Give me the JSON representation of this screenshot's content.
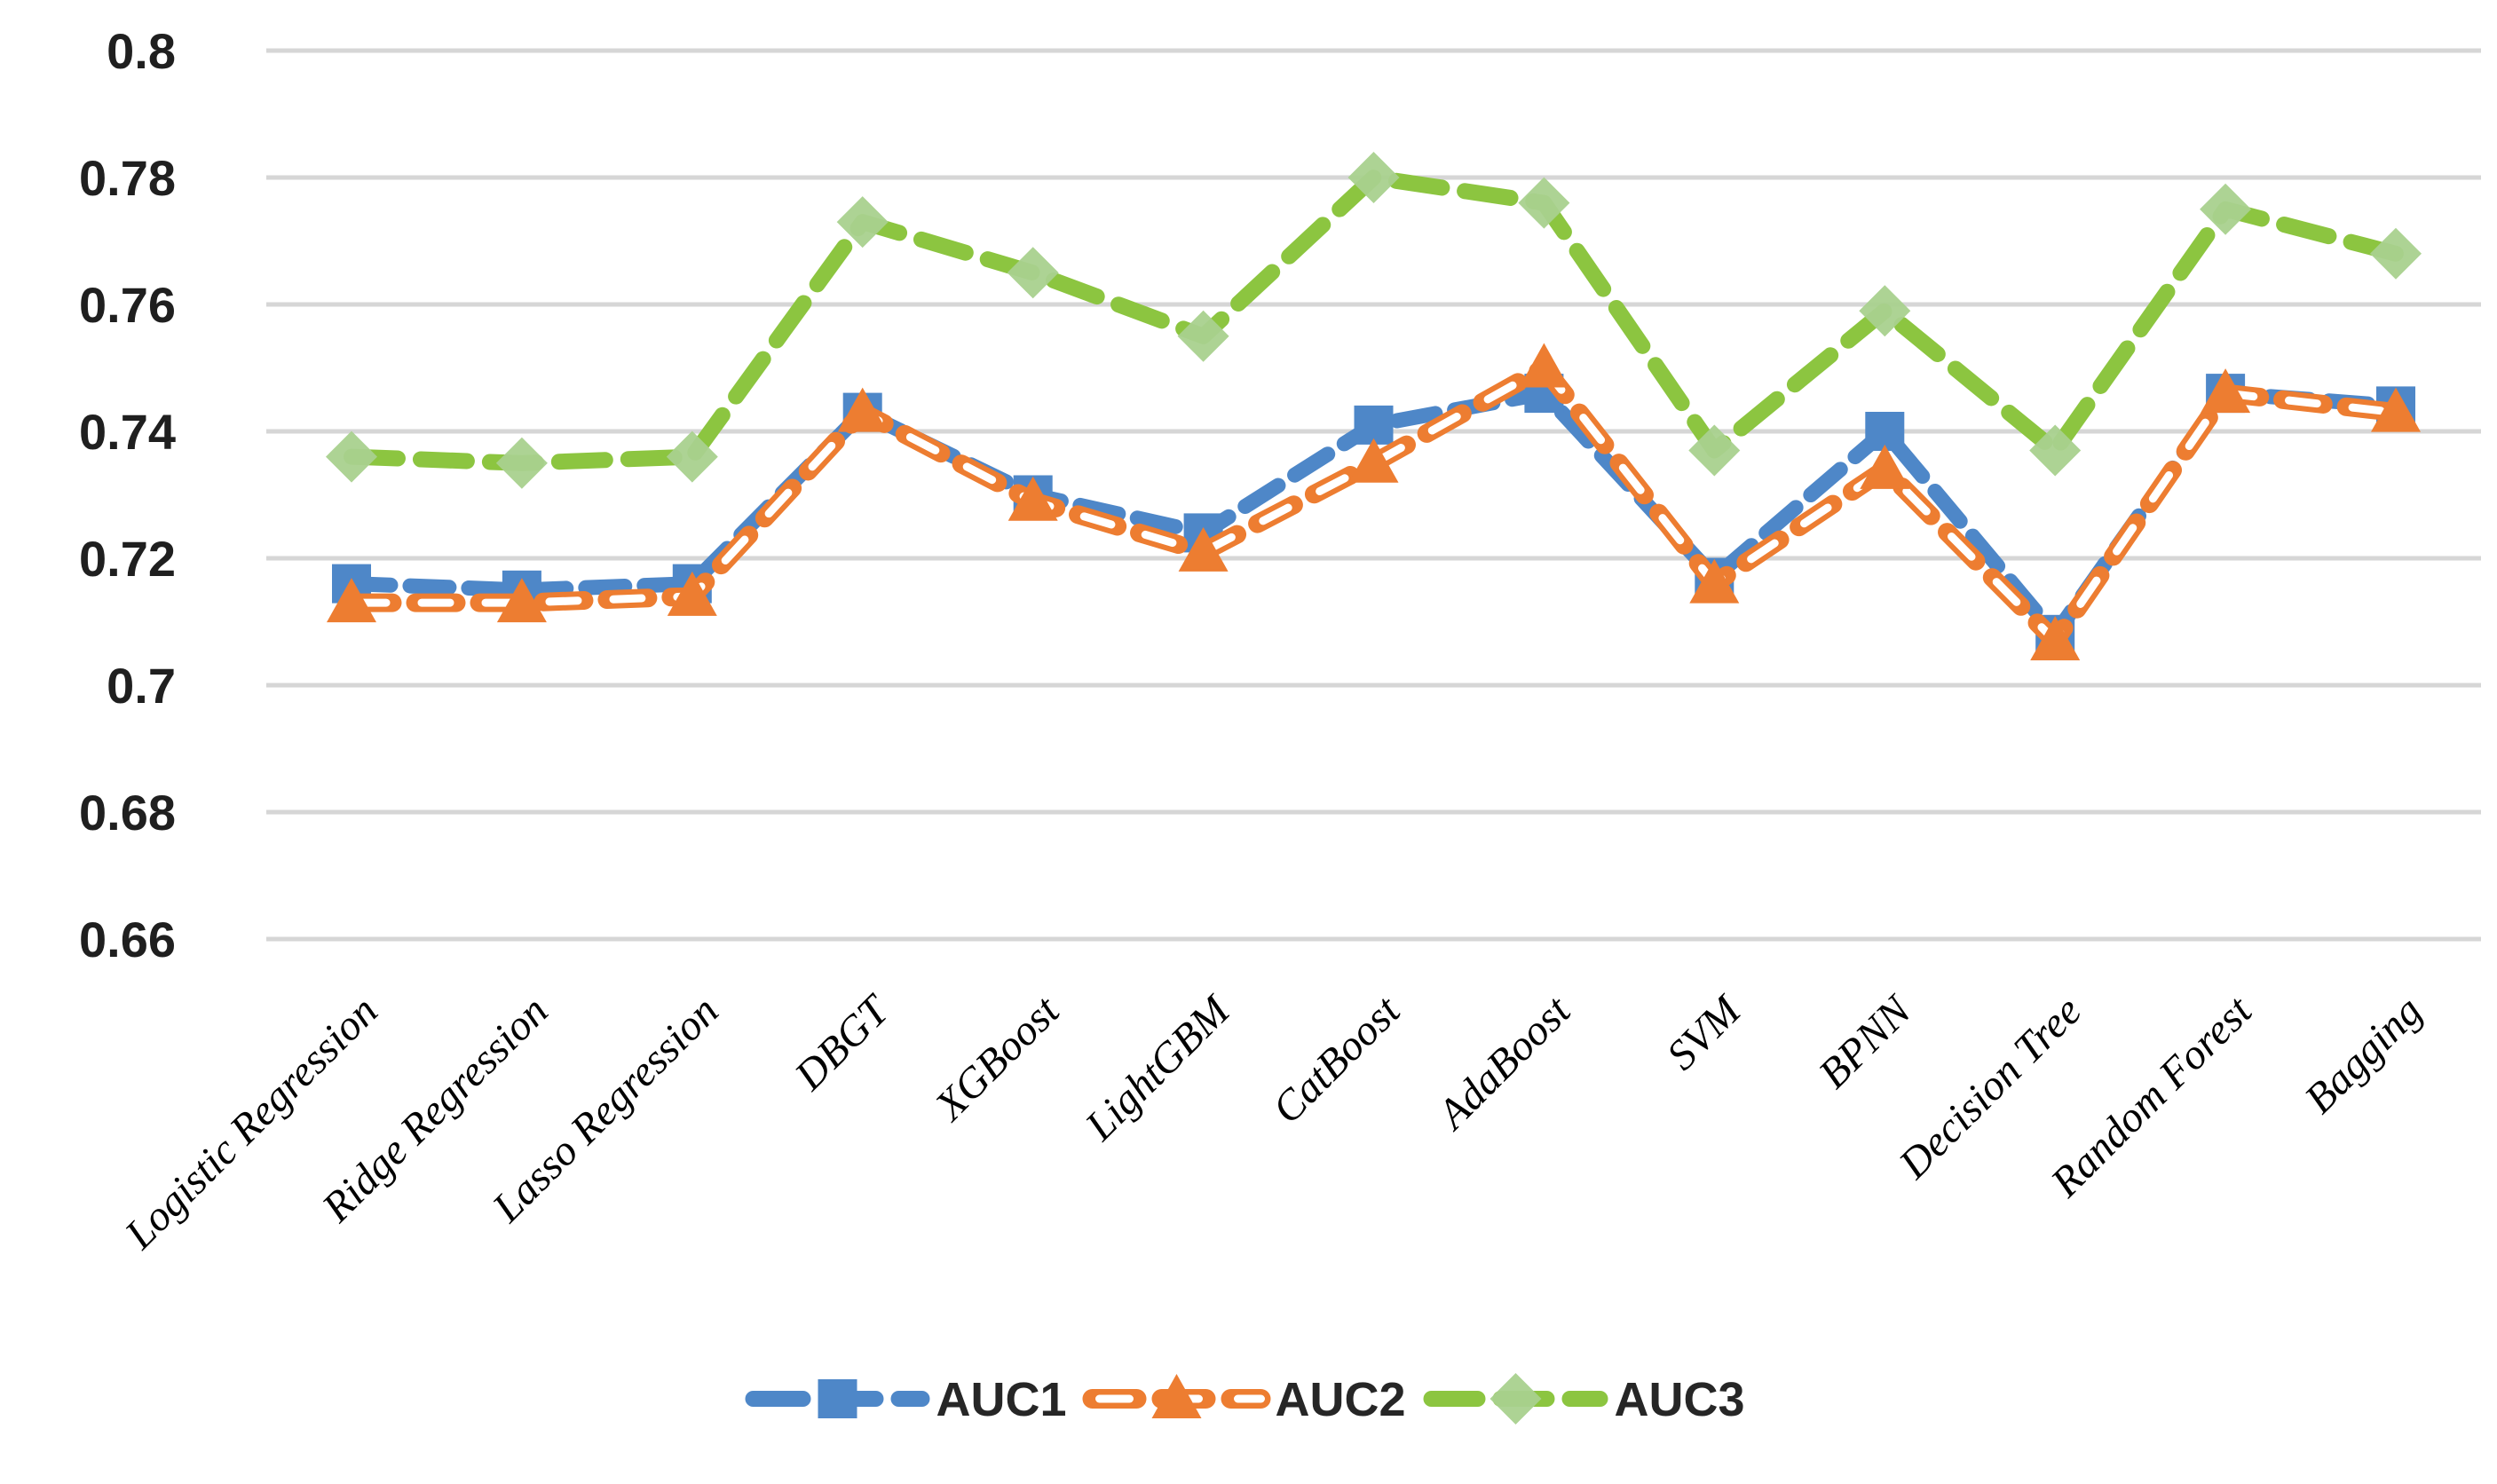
{
  "page": {
    "background": "#FFFFFF"
  },
  "chart_data": {
    "type": "line",
    "title": "",
    "xlabel": "",
    "ylabel": "",
    "categories": [
      "Logistic Regression",
      "Ridge Regression",
      "Lasso Regression",
      "DBGT",
      "XGBoost",
      "LightGBM",
      "CatBoost",
      "AdaBoost",
      "SVM",
      "BPNN",
      "Decision Tree",
      "Random Forest",
      "Bagging"
    ],
    "series": [
      {
        "name": "AUC1",
        "marker": "square",
        "line_style": "dash",
        "color": "#4E87C8",
        "marker_color": "#4E87C8",
        "values": [
          0.716,
          0.715,
          0.716,
          0.743,
          0.73,
          0.724,
          0.741,
          0.746,
          0.717,
          0.74,
          0.708,
          0.746,
          0.744
        ]
      },
      {
        "name": "AUC2",
        "marker": "triangle",
        "line_style": "hollow-dash",
        "color": "#ED7D31",
        "marker_color": "#ED7D31",
        "values": [
          0.713,
          0.713,
          0.714,
          0.743,
          0.729,
          0.721,
          0.735,
          0.75,
          0.716,
          0.734,
          0.707,
          0.746,
          0.743
        ]
      },
      {
        "name": "AUC3",
        "marker": "diamond",
        "line_style": "dash",
        "color": "#8CC540",
        "marker_color": "#A9D18E",
        "values": [
          0.736,
          0.735,
          0.736,
          0.773,
          0.765,
          0.755,
          0.78,
          0.776,
          0.737,
          0.759,
          0.737,
          0.775,
          0.768
        ]
      }
    ],
    "y_axis": {
      "min": 0.66,
      "max": 0.8,
      "step": 0.02,
      "tick_labels": [
        "0.8",
        "0.78",
        "0.76",
        "0.74",
        "0.72",
        "0.7",
        "0.68",
        "0.66"
      ]
    },
    "x_tick_rotation_deg": 45,
    "grid": true,
    "gridline_color": "#D6D6D6",
    "background": "#FFFFFF",
    "legend_position": "bottom"
  }
}
